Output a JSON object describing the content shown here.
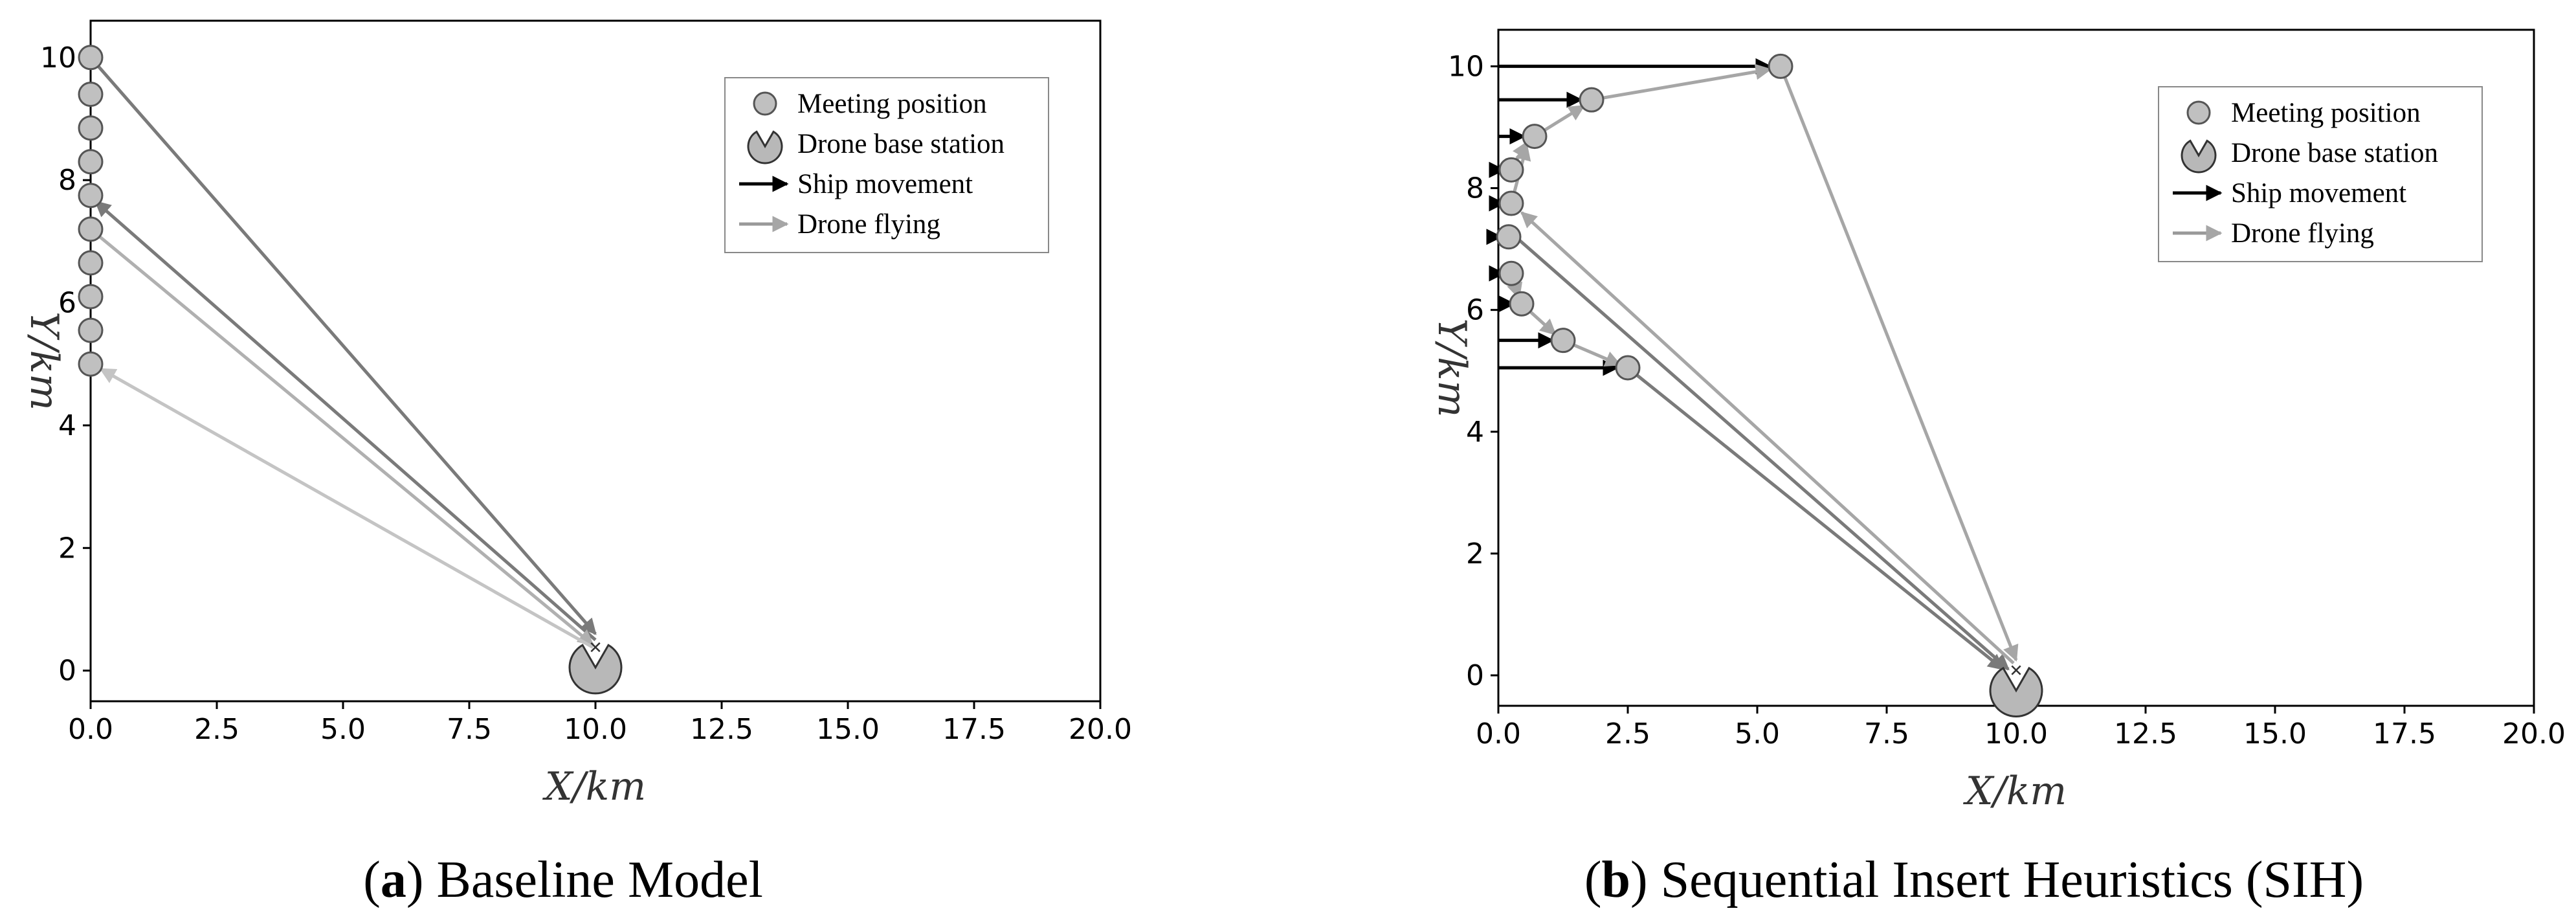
{
  "chart_data": [
    {
      "type": "scatter",
      "caption_letter": "a",
      "caption_text": "Baseline Model",
      "xlabel": "X/km",
      "ylabel": "Y/km",
      "xlim": [
        0,
        20
      ],
      "ylim": [
        -0.5,
        10.6
      ],
      "xticks": [
        "0.0",
        "2.5",
        "5.0",
        "7.5",
        "10.0",
        "12.5",
        "15.0",
        "17.5",
        "20.0"
      ],
      "yticks": [
        "0",
        "2",
        "4",
        "6",
        "8",
        "10"
      ],
      "legend": [
        "Meeting position",
        "Drone base station",
        "Ship movement",
        "Drone flying"
      ],
      "legend_position": "top-right",
      "base_station": {
        "x": 10.0,
        "y": 0.05
      },
      "meeting_positions": [
        {
          "x": 0,
          "y": 10.0
        },
        {
          "x": 0,
          "y": 9.4
        },
        {
          "x": 0,
          "y": 8.85
        },
        {
          "x": 0,
          "y": 8.3
        },
        {
          "x": 0,
          "y": 7.75
        },
        {
          "x": 0,
          "y": 7.2
        },
        {
          "x": 0,
          "y": 6.65
        },
        {
          "x": 0,
          "y": 6.1
        },
        {
          "x": 0,
          "y": 5.55
        },
        {
          "x": 0,
          "y": 5.0
        }
      ],
      "ship_movements": [],
      "drone_flights": [
        {
          "from": [
            0,
            10.0
          ],
          "to": [
            10.0,
            0.6
          ],
          "shade": "#7a7a7a"
        },
        {
          "from": [
            10.0,
            0.5
          ],
          "to": [
            0.1,
            7.65
          ],
          "shade": "#7a7a7a"
        },
        {
          "from": [
            0,
            7.2
          ],
          "to": [
            9.95,
            0.42
          ],
          "shade": "#b0b0b0"
        },
        {
          "from": [
            9.95,
            0.38
          ],
          "to": [
            0.2,
            4.92
          ],
          "shade": "#c4c4c4"
        }
      ]
    },
    {
      "type": "scatter",
      "caption_letter": "b",
      "caption_text": "Sequential Insert Heuristics (SIH)",
      "xlabel": "X/km",
      "ylabel": "Y/km",
      "xlim": [
        0,
        20
      ],
      "ylim": [
        -0.5,
        10.6
      ],
      "xticks": [
        "0.0",
        "2.5",
        "5.0",
        "7.5",
        "10.0",
        "12.5",
        "15.0",
        "17.5",
        "20.0"
      ],
      "yticks": [
        "0",
        "2",
        "4",
        "6",
        "8",
        "10"
      ],
      "legend": [
        "Meeting position",
        "Drone base station",
        "Ship movement",
        "Drone flying"
      ],
      "legend_position": "top-right",
      "base_station": {
        "x": 10.0,
        "y": -0.25
      },
      "meeting_positions": [
        {
          "x": 5.45,
          "y": 10.0
        },
        {
          "x": 1.8,
          "y": 9.45
        },
        {
          "x": 0.7,
          "y": 8.85
        },
        {
          "x": 0.25,
          "y": 8.3
        },
        {
          "x": 0.25,
          "y": 7.75
        },
        {
          "x": 0.2,
          "y": 7.2
        },
        {
          "x": 0.25,
          "y": 6.6
        },
        {
          "x": 0.45,
          "y": 6.1
        },
        {
          "x": 1.25,
          "y": 5.5
        },
        {
          "x": 2.5,
          "y": 5.05
        }
      ],
      "ship_movements": [
        {
          "from": [
            0,
            10.0
          ],
          "to": [
            5.25,
            10.0
          ]
        },
        {
          "from": [
            0,
            9.45
          ],
          "to": [
            1.6,
            9.45
          ]
        },
        {
          "from": [
            0,
            8.85
          ],
          "to": [
            0.5,
            8.85
          ]
        },
        {
          "from": [
            0,
            8.3
          ],
          "to": [
            0.1,
            8.3
          ]
        },
        {
          "from": [
            0,
            7.75
          ],
          "to": [
            0.1,
            7.75
          ]
        },
        {
          "from": [
            0,
            7.2
          ],
          "to": [
            0.05,
            7.2
          ]
        },
        {
          "from": [
            0,
            6.6
          ],
          "to": [
            0.1,
            6.6
          ]
        },
        {
          "from": [
            0,
            6.1
          ],
          "to": [
            0.3,
            6.1
          ]
        },
        {
          "from": [
            0,
            5.5
          ],
          "to": [
            1.05,
            5.5
          ]
        },
        {
          "from": [
            0,
            5.05
          ],
          "to": [
            2.3,
            5.05
          ]
        }
      ],
      "drone_flights": [
        {
          "from": [
            0.4,
            7.15
          ],
          "to": [
            9.85,
            0.1
          ],
          "shade": "#7a7a7a"
        },
        {
          "from": [
            2.5,
            5.05
          ],
          "to": [
            9.75,
            0.1
          ],
          "shade": "#7a7a7a"
        },
        {
          "from": [
            9.95,
            0.2
          ],
          "to": [
            0.45,
            7.6
          ],
          "shade": "#a6a6a6"
        },
        {
          "from": [
            5.45,
            10.0
          ],
          "to": [
            10.0,
            0.25
          ],
          "shade": "#a6a6a6"
        },
        {
          "from": [
            0.25,
            6.6
          ],
          "to": [
            0.4,
            6.2
          ],
          "shade": "#a6a6a6"
        },
        {
          "from": [
            0.45,
            6.1
          ],
          "to": [
            1.1,
            5.6
          ],
          "shade": "#a6a6a6"
        },
        {
          "from": [
            1.25,
            5.5
          ],
          "to": [
            2.35,
            5.1
          ],
          "shade": "#a6a6a6"
        },
        {
          "from": [
            0.25,
            7.75
          ],
          "to": [
            0.55,
            8.7
          ],
          "shade": "#a6a6a6"
        },
        {
          "from": [
            0.7,
            8.85
          ],
          "to": [
            1.65,
            9.35
          ],
          "shade": "#a6a6a6"
        },
        {
          "from": [
            1.8,
            9.45
          ],
          "to": [
            5.25,
            9.95
          ],
          "shade": "#a6a6a6"
        },
        {
          "from": [
            0.25,
            8.3
          ],
          "to": [
            0.55,
            8.75
          ],
          "shade": "#a6a6a6"
        }
      ]
    }
  ]
}
